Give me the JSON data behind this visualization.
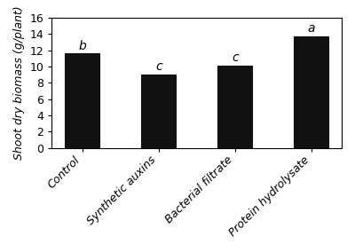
{
  "categories": [
    "Control",
    "Synthetic auxins",
    "Bacterial filtrate",
    "Protein hydrolysate"
  ],
  "values": [
    11.6,
    9.0,
    10.1,
    13.75
  ],
  "letters": [
    "b",
    "c",
    "c",
    "a"
  ],
  "bar_color": "#111111",
  "ylabel": "Shoot dry biomass (g/plant)",
  "ylim": [
    0,
    16
  ],
  "yticks": [
    0,
    2,
    4,
    6,
    8,
    10,
    12,
    14,
    16
  ],
  "bar_width": 0.45,
  "letter_fontsize": 10,
  "label_fontsize": 9,
  "tick_fontsize": 9,
  "xlabel_rotation": 45,
  "background_color": "#ffffff",
  "figsize": [
    4.0,
    2.84
  ],
  "dpi": 100
}
